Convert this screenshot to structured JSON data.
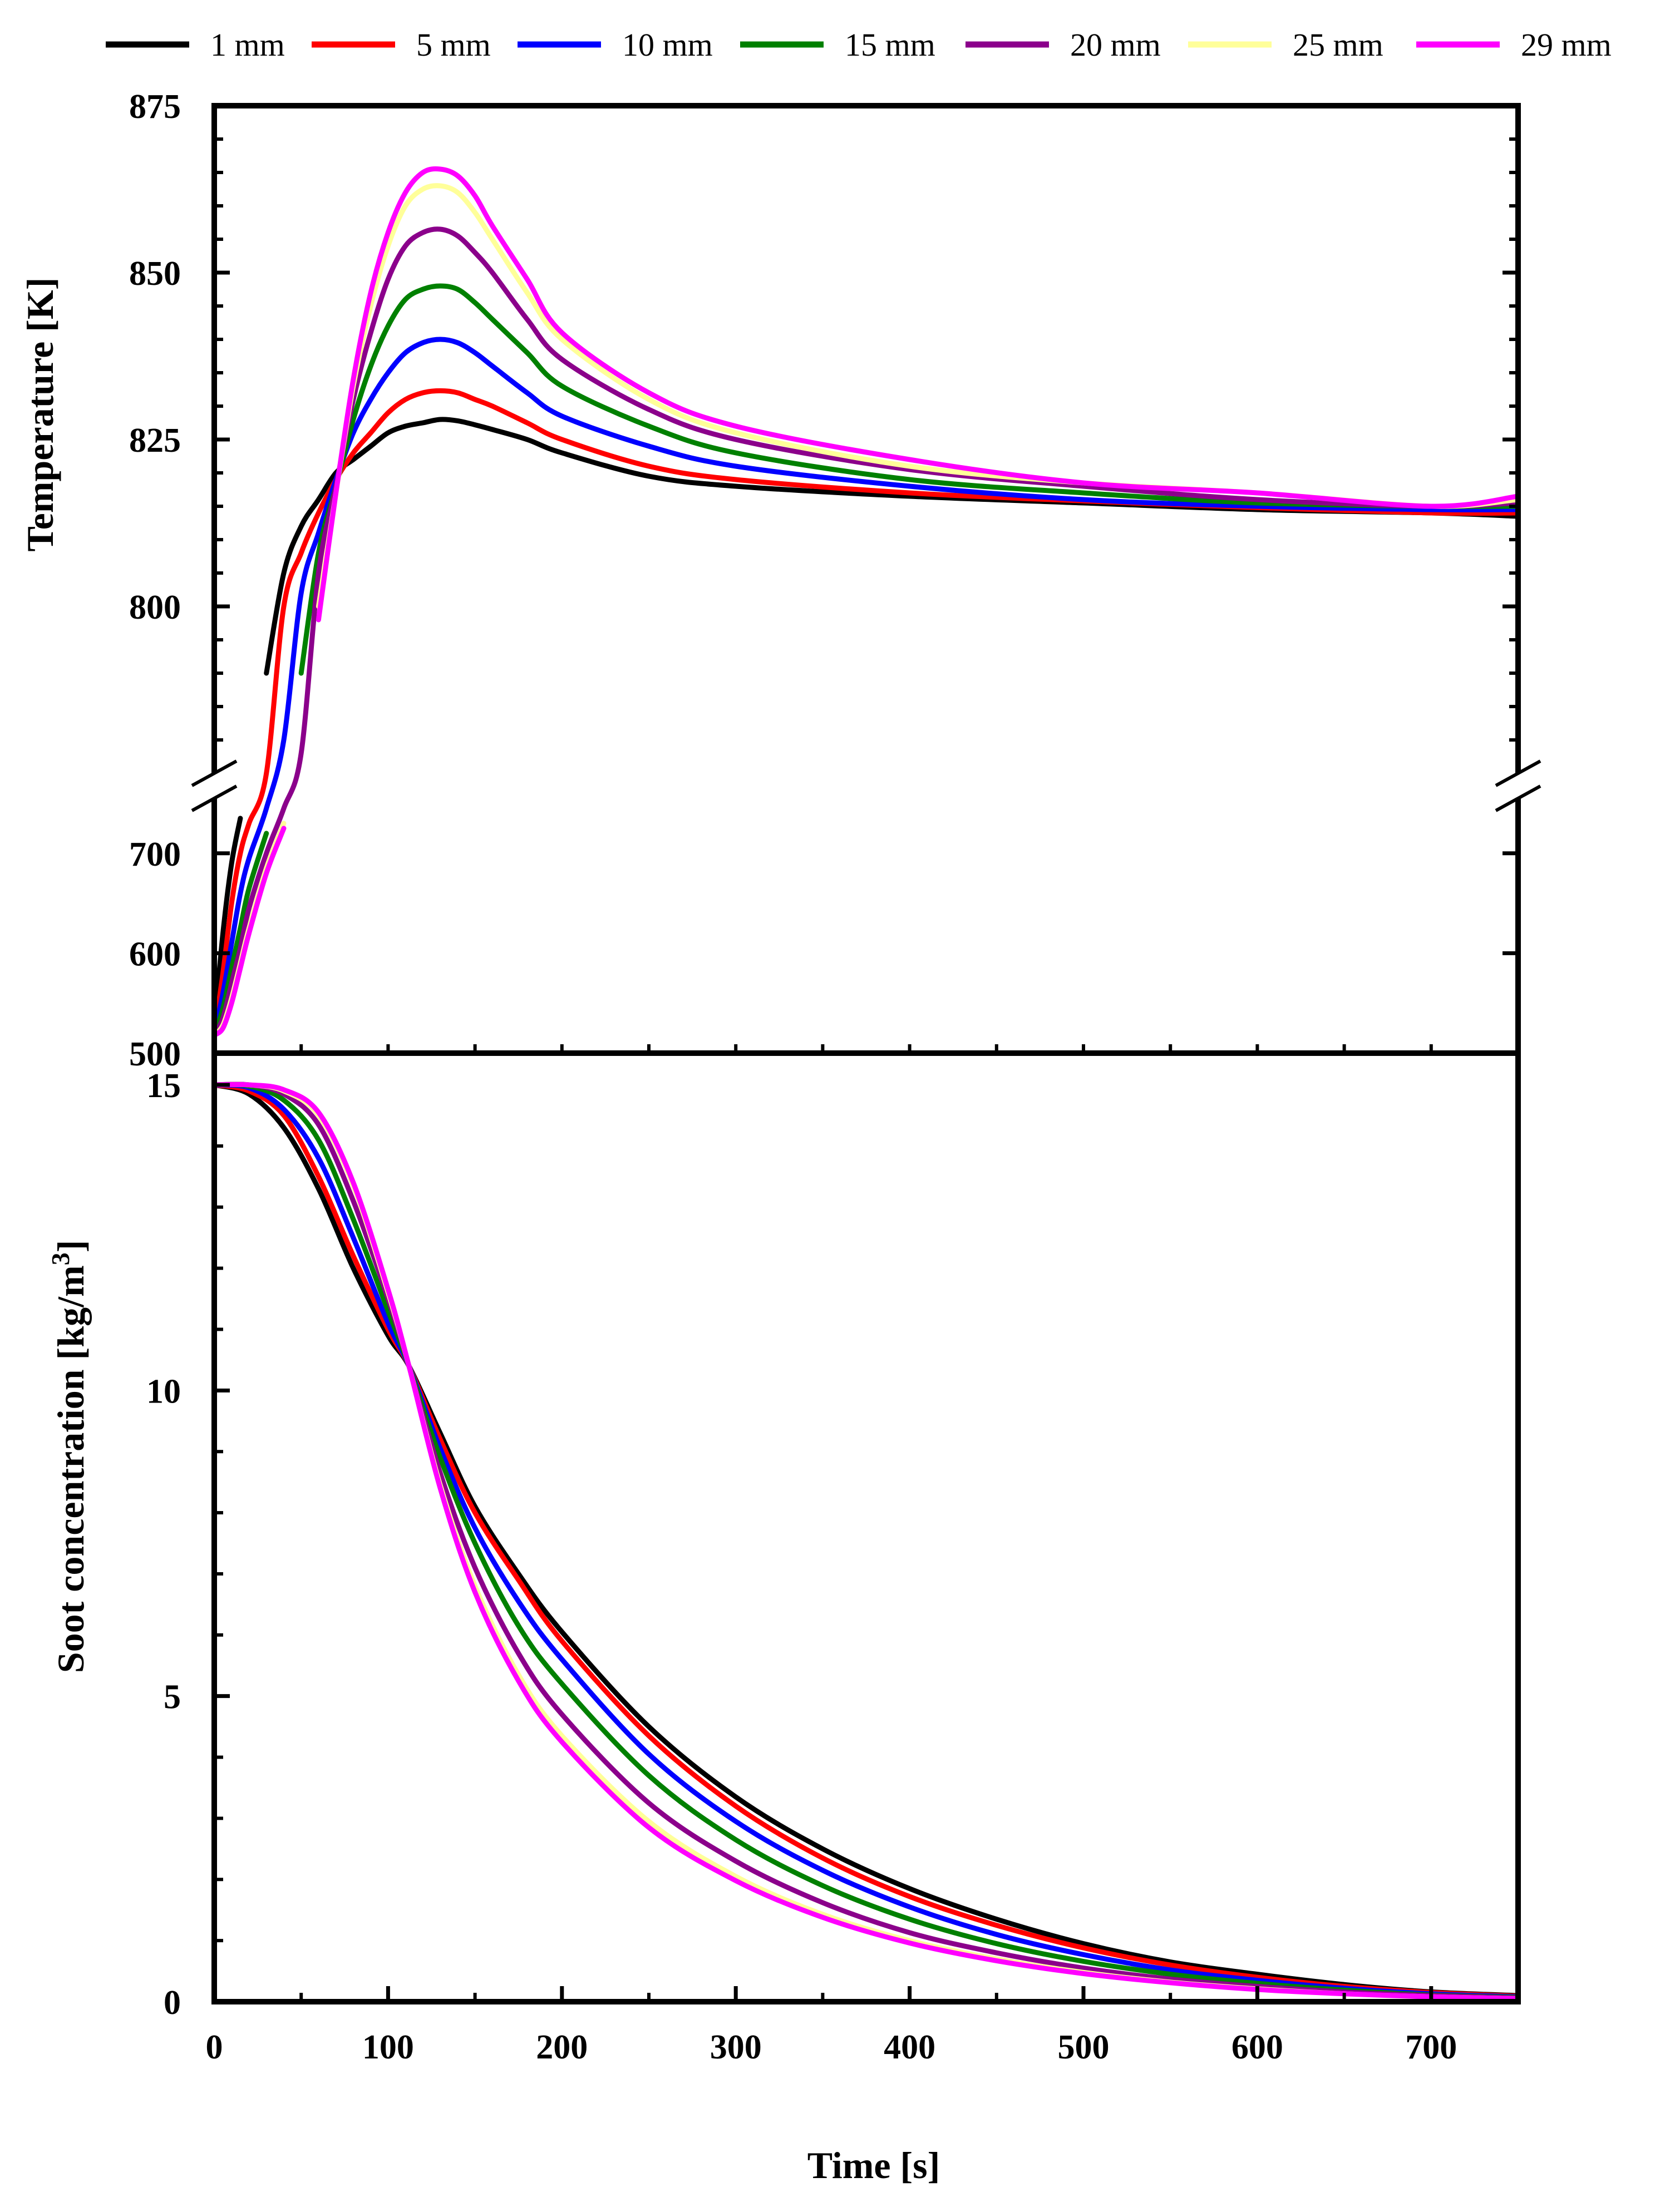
{
  "chart_data": [
    {
      "type": "line",
      "panel": "top",
      "ylabel": "Temperature [K]",
      "xlim": [
        0,
        750
      ],
      "ylim_upper_segment": [
        775,
        875
      ],
      "ylim_lower_segment": [
        500,
        755
      ],
      "y_ticks_upper": [
        800,
        825,
        850,
        875
      ],
      "y_ticks_lower": [
        500,
        600,
        700
      ],
      "axis_break": "y between 755 and 775",
      "series": [
        {
          "name": "1 mm",
          "color": "#000000",
          "x": [
            0,
            5,
            10,
            15,
            20,
            30,
            40,
            50,
            60,
            70,
            80,
            90,
            100,
            110,
            120,
            130,
            140,
            150,
            160,
            180,
            200,
            250,
            300,
            400,
            500,
            600,
            700,
            750
          ],
          "values": [
            525,
            620,
            690,
            735,
            760,
            790,
            805,
            812,
            816,
            820,
            822,
            824,
            826,
            827,
            827.5,
            828,
            827.8,
            827.2,
            826.5,
            825,
            823,
            819.5,
            818,
            816.5,
            815.5,
            814.5,
            814,
            813.5
          ]
        },
        {
          "name": "5 mm",
          "color": "#ff0000",
          "x": [
            0,
            5,
            10,
            15,
            20,
            30,
            40,
            50,
            60,
            70,
            80,
            90,
            100,
            110,
            120,
            130,
            140,
            150,
            160,
            180,
            200,
            250,
            300,
            400,
            500,
            600,
            700,
            750
          ],
          "values": [
            520,
            580,
            650,
            700,
            730,
            775,
            800,
            808,
            814,
            819,
            823,
            826,
            829,
            831,
            832,
            832.3,
            832,
            831,
            830,
            827.5,
            825,
            821,
            819,
            817,
            815.8,
            814.8,
            814,
            814
          ]
        },
        {
          "name": "10 mm",
          "color": "#0000ff",
          "x": [
            0,
            5,
            10,
            15,
            20,
            30,
            40,
            50,
            60,
            70,
            80,
            90,
            100,
            110,
            120,
            130,
            140,
            150,
            160,
            180,
            200,
            250,
            300,
            400,
            500,
            600,
            700,
            750
          ],
          "values": [
            520,
            560,
            610,
            660,
            695,
            745,
            780,
            802,
            811,
            819,
            826,
            831,
            835,
            838,
            839.5,
            840,
            839.5,
            838,
            836,
            832,
            828.5,
            824,
            821,
            818,
            816,
            815,
            814.5,
            814.5
          ]
        },
        {
          "name": "15 mm",
          "color": "#008000",
          "x": [
            0,
            5,
            10,
            15,
            20,
            30,
            40,
            50,
            60,
            70,
            80,
            90,
            100,
            110,
            120,
            130,
            140,
            150,
            160,
            180,
            200,
            250,
            300,
            400,
            500,
            600,
            700,
            750
          ],
          "values": [
            518,
            545,
            585,
            625,
            665,
            720,
            760,
            790,
            808,
            818,
            828,
            836,
            842,
            846,
            847.5,
            848,
            847.5,
            845.5,
            843,
            838,
            833,
            827,
            823,
            819,
            817,
            815.5,
            815,
            815
          ]
        },
        {
          "name": "20 mm",
          "color": "#8b008b",
          "x": [
            0,
            5,
            10,
            15,
            20,
            30,
            40,
            50,
            60,
            70,
            80,
            90,
            100,
            110,
            120,
            130,
            140,
            150,
            160,
            180,
            200,
            250,
            300,
            400,
            500,
            600,
            700,
            750
          ],
          "values": [
            518,
            535,
            570,
            605,
            645,
            700,
            745,
            778,
            805,
            818,
            831,
            841,
            849,
            854,
            856,
            856.5,
            855.5,
            853,
            850,
            843,
            837,
            829.5,
            825,
            820.5,
            818,
            816,
            815,
            815.5
          ]
        },
        {
          "name": "25 mm",
          "color": "#ffff99",
          "x": [
            0,
            5,
            10,
            15,
            20,
            30,
            40,
            50,
            60,
            70,
            80,
            90,
            100,
            110,
            120,
            130,
            140,
            150,
            160,
            180,
            200,
            250,
            300,
            400,
            500,
            600,
            700,
            750
          ],
          "values": [
            518,
            528,
            555,
            590,
            625,
            685,
            730,
            768,
            800,
            817,
            833,
            845,
            854,
            860,
            862.5,
            863,
            862,
            859,
            855,
            847,
            840,
            831,
            826,
            821,
            818.5,
            817,
            815,
            816
          ]
        },
        {
          "name": "29 mm",
          "color": "#ff00ff",
          "x": [
            0,
            5,
            10,
            15,
            20,
            30,
            40,
            50,
            60,
            70,
            80,
            90,
            100,
            110,
            120,
            130,
            140,
            150,
            160,
            180,
            200,
            250,
            300,
            400,
            500,
            600,
            700,
            750
          ],
          "values": [
            518,
            525,
            550,
            585,
            620,
            680,
            725,
            762,
            798,
            817,
            834,
            847,
            856,
            862,
            865,
            865.5,
            864.5,
            861.5,
            857,
            849,
            841,
            832,
            827,
            822,
            818.5,
            817,
            815,
            816.5
          ]
        }
      ]
    },
    {
      "type": "line",
      "panel": "bottom",
      "xlabel": "Time [s]",
      "ylabel": "Soot concentration [kg/m",
      "ylabel_superscript": "3",
      "ylabel_end": "]",
      "xlim": [
        0,
        750
      ],
      "ylim": [
        0,
        15
      ],
      "x_ticks": [
        0,
        100,
        200,
        300,
        400,
        500,
        600,
        700
      ],
      "y_ticks": [
        0,
        5,
        10,
        15
      ],
      "series": [
        {
          "name": "1 mm",
          "color": "#000000",
          "x": [
            0,
            20,
            40,
            60,
            80,
            100,
            112,
            130,
            150,
            175,
            200,
            250,
            300,
            350,
            400,
            450,
            500,
            550,
            600,
            650,
            700,
            750
          ],
          "values": [
            15,
            14.85,
            14.3,
            13.3,
            12,
            10.9,
            10.4,
            9.3,
            8.1,
            7.0,
            6.05,
            4.5,
            3.35,
            2.5,
            1.85,
            1.35,
            0.95,
            0.65,
            0.45,
            0.28,
            0.16,
            0.1
          ]
        },
        {
          "name": "5 mm",
          "color": "#ff0000",
          "x": [
            0,
            20,
            40,
            60,
            80,
            100,
            112,
            130,
            150,
            175,
            200,
            250,
            300,
            350,
            400,
            450,
            500,
            550,
            600,
            650,
            700,
            750
          ],
          "values": [
            15,
            14.9,
            14.5,
            13.5,
            12.2,
            11.0,
            10.4,
            9.2,
            8.0,
            6.9,
            5.9,
            4.35,
            3.2,
            2.35,
            1.72,
            1.25,
            0.88,
            0.6,
            0.4,
            0.25,
            0.15,
            0.09
          ]
        },
        {
          "name": "10 mm",
          "color": "#0000ff",
          "x": [
            0,
            20,
            40,
            60,
            80,
            100,
            112,
            130,
            150,
            175,
            200,
            250,
            300,
            350,
            400,
            450,
            500,
            550,
            600,
            650,
            700,
            750
          ],
          "values": [
            15,
            14.95,
            14.6,
            13.8,
            12.5,
            11.1,
            10.4,
            9.05,
            7.75,
            6.55,
            5.6,
            4.05,
            2.95,
            2.15,
            1.55,
            1.1,
            0.77,
            0.52,
            0.35,
            0.22,
            0.13,
            0.08
          ]
        },
        {
          "name": "15 mm",
          "color": "#008000",
          "x": [
            0,
            20,
            40,
            60,
            80,
            100,
            112,
            130,
            150,
            175,
            200,
            250,
            300,
            350,
            400,
            450,
            500,
            550,
            600,
            650,
            700,
            750
          ],
          "values": [
            15,
            14.98,
            14.75,
            14.1,
            12.8,
            11.3,
            10.4,
            8.9,
            7.5,
            6.15,
            5.2,
            3.7,
            2.65,
            1.9,
            1.35,
            0.95,
            0.66,
            0.45,
            0.3,
            0.19,
            0.11,
            0.07
          ]
        },
        {
          "name": "20 mm",
          "color": "#8b008b",
          "x": [
            0,
            20,
            40,
            60,
            80,
            100,
            112,
            130,
            150,
            175,
            200,
            250,
            300,
            350,
            400,
            450,
            500,
            550,
            600,
            650,
            700,
            750
          ],
          "values": [
            15,
            15,
            14.85,
            14.35,
            13.1,
            11.5,
            10.4,
            8.65,
            7.1,
            5.7,
            4.7,
            3.25,
            2.3,
            1.62,
            1.13,
            0.8,
            0.55,
            0.37,
            0.25,
            0.16,
            0.1,
            0.06
          ]
        },
        {
          "name": "25 mm",
          "color": "#ffff99",
          "x": [
            0,
            20,
            40,
            60,
            80,
            100,
            112,
            130,
            150,
            175,
            200,
            250,
            300,
            350,
            400,
            450,
            500,
            550,
            600,
            650,
            700,
            750
          ],
          "values": [
            15,
            15,
            14.9,
            14.5,
            13.35,
            11.6,
            10.4,
            8.45,
            6.8,
            5.35,
            4.35,
            2.95,
            2.05,
            1.43,
            1.0,
            0.7,
            0.48,
            0.32,
            0.21,
            0.13,
            0.08,
            0.05
          ]
        },
        {
          "name": "29 mm",
          "color": "#ff00ff",
          "x": [
            0,
            20,
            40,
            60,
            80,
            100,
            112,
            130,
            150,
            175,
            200,
            250,
            300,
            350,
            400,
            450,
            500,
            550,
            600,
            650,
            700,
            750
          ],
          "values": [
            15,
            15,
            14.92,
            14.55,
            13.4,
            11.65,
            10.4,
            8.4,
            6.7,
            5.25,
            4.25,
            2.85,
            1.98,
            1.38,
            0.96,
            0.67,
            0.46,
            0.31,
            0.2,
            0.13,
            0.08,
            0.05
          ]
        }
      ]
    }
  ]
}
